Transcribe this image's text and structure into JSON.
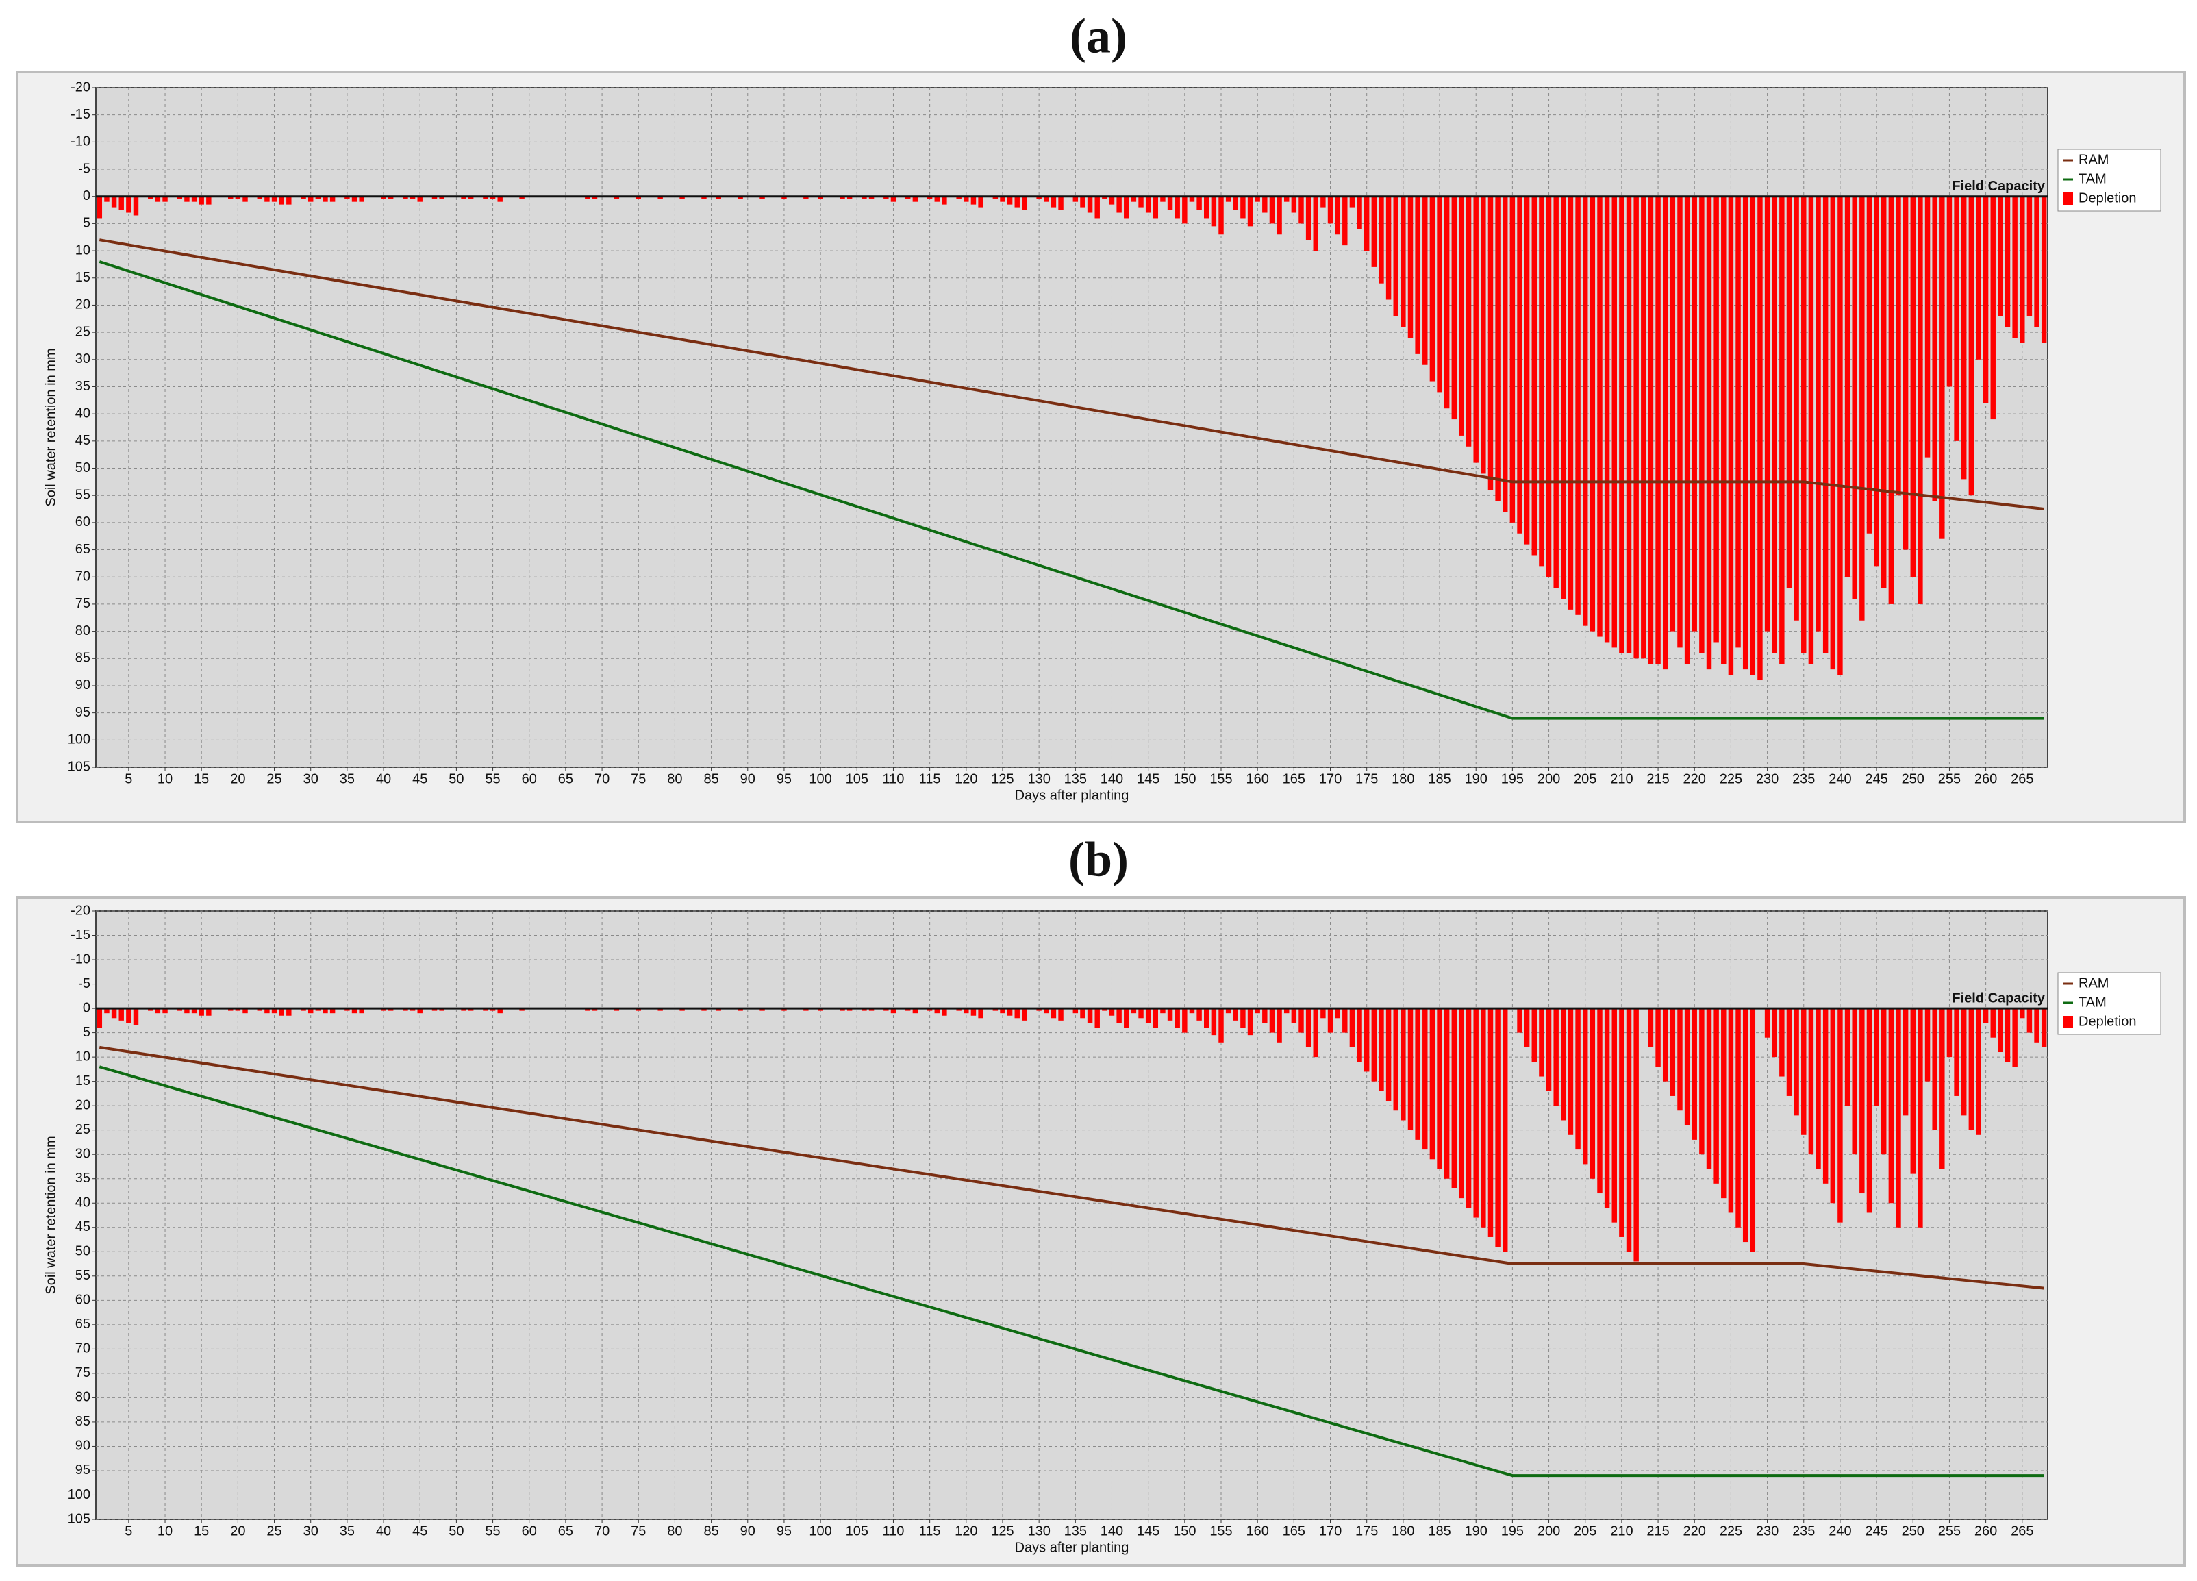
{
  "chart_data": [
    {
      "type": "bar",
      "title": "(a)",
      "x_label": "Days after planting",
      "y_label": "Soil water retention in mm",
      "annotation": "Field Capacity",
      "x": [
        1,
        2,
        3,
        4,
        5,
        6,
        7,
        8,
        9,
        10,
        11,
        12,
        13,
        14,
        15,
        16,
        17,
        18,
        19,
        20,
        21,
        22,
        23,
        24,
        25,
        26,
        27,
        28,
        29,
        30,
        31,
        32,
        33,
        34,
        35,
        36,
        37,
        38,
        39,
        40,
        41,
        42,
        43,
        44,
        45,
        46,
        47,
        48,
        49,
        50,
        51,
        52,
        53,
        54,
        55,
        56,
        57,
        58,
        59,
        60,
        61,
        62,
        63,
        64,
        65,
        66,
        67,
        68,
        69,
        70,
        71,
        72,
        73,
        74,
        75,
        76,
        77,
        78,
        79,
        80,
        81,
        82,
        83,
        84,
        85,
        86,
        87,
        88,
        89,
        90,
        91,
        92,
        93,
        94,
        95,
        96,
        97,
        98,
        99,
        100,
        101,
        102,
        103,
        104,
        105,
        106,
        107,
        108,
        109,
        110,
        111,
        112,
        113,
        114,
        115,
        116,
        117,
        118,
        119,
        120,
        121,
        122,
        123,
        124,
        125,
        126,
        127,
        128,
        129,
        130,
        131,
        132,
        133,
        134,
        135,
        136,
        137,
        138,
        139,
        140,
        141,
        142,
        143,
        144,
        145,
        146,
        147,
        148,
        149,
        150,
        151,
        152,
        153,
        154,
        155,
        156,
        157,
        158,
        159,
        160,
        161,
        162,
        163,
        164,
        165,
        166,
        167,
        168,
        169,
        170,
        171,
        172,
        173,
        174,
        175,
        176,
        177,
        178,
        179,
        180,
        181,
        182,
        183,
        184,
        185,
        186,
        187,
        188,
        189,
        190,
        191,
        192,
        193,
        194,
        195,
        196,
        197,
        198,
        199,
        200,
        201,
        202,
        203,
        204,
        205,
        206,
        207,
        208,
        209,
        210,
        211,
        212,
        213,
        214,
        215,
        216,
        217,
        218,
        219,
        220,
        221,
        222,
        223,
        224,
        225,
        226,
        227,
        228,
        229,
        230,
        231,
        232,
        233,
        234,
        235,
        236,
        237,
        238,
        239,
        240,
        241,
        242,
        243,
        244,
        245,
        246,
        247,
        248,
        249,
        250,
        251,
        252,
        253,
        254,
        255,
        256,
        257,
        258,
        259,
        260,
        261,
        262,
        263,
        264,
        265,
        266,
        267,
        268
      ],
      "series": [
        {
          "name": "RAM",
          "type": "line",
          "color": "#7a2e12",
          "x": [
            1,
            195,
            235,
            268
          ],
          "values": [
            8,
            52.5,
            52.5,
            57.5
          ]
        },
        {
          "name": "TAM",
          "type": "line",
          "color": "#0e6b12",
          "x": [
            1,
            195,
            268
          ],
          "values": [
            12,
            96,
            96
          ]
        },
        {
          "name": "Depletion",
          "type": "bar",
          "color": "#ff0000",
          "values": [
            4,
            1,
            2,
            2.5,
            3,
            3.5,
            0,
            0.5,
            1,
            1,
            0,
            0.5,
            1,
            1,
            1.5,
            1.5,
            0,
            0,
            0.5,
            0.5,
            1,
            0,
            0.5,
            1,
            1,
            1.5,
            1.5,
            0,
            0.5,
            1,
            0.5,
            1,
            1,
            0,
            0.5,
            1,
            1,
            0,
            0,
            0.5,
            0.5,
            0,
            0.5,
            0.5,
            1,
            0,
            0.5,
            0.5,
            0,
            0,
            0.5,
            0.5,
            0,
            0.5,
            0.5,
            1,
            0,
            0,
            0.5,
            0,
            0,
            0,
            0,
            0,
            0,
            0,
            0,
            0.5,
            0.5,
            0,
            0,
            0.5,
            0,
            0,
            0.5,
            0,
            0,
            0.5,
            0,
            0,
            0.5,
            0,
            0,
            0.5,
            0,
            0.5,
            0,
            0,
            0.5,
            0,
            0,
            0.5,
            0,
            0,
            0.5,
            0,
            0,
            0.5,
            0,
            0.5,
            0,
            0,
            0.5,
            0.5,
            0,
            0.5,
            0.5,
            0,
            0.5,
            1,
            0,
            0.5,
            1,
            0,
            0.5,
            1,
            1.5,
            0,
            0.5,
            1,
            1.5,
            2,
            0,
            0.5,
            1,
            1.5,
            2,
            2.5,
            0,
            0.5,
            1,
            2,
            2.5,
            0,
            1,
            2,
            3,
            4,
            0.5,
            1.5,
            3,
            4,
            1,
            2,
            3,
            4,
            1,
            2.5,
            4,
            5,
            1,
            2.5,
            4,
            5.5,
            7,
            1,
            2.5,
            4,
            5.5,
            1,
            3,
            5,
            7,
            1,
            3,
            5,
            8,
            10,
            2,
            5,
            7,
            9,
            2,
            6,
            10,
            13,
            16,
            19,
            22,
            24,
            26,
            29,
            31,
            34,
            36,
            39,
            41,
            44,
            46,
            49,
            51,
            54,
            56,
            58,
            60,
            62,
            64,
            66,
            68,
            70,
            72,
            74,
            76,
            77,
            79,
            80,
            81,
            82,
            83,
            84,
            84,
            85,
            85,
            86,
            86,
            87,
            80,
            83,
            86,
            80,
            84,
            87,
            82,
            86,
            88,
            83,
            87,
            88,
            89,
            80,
            84,
            86,
            72,
            78,
            84,
            86,
            80,
            84,
            87,
            88,
            70,
            74,
            78,
            62,
            68,
            72,
            75,
            55,
            65,
            70,
            75,
            48,
            56,
            63,
            35,
            45,
            52,
            55,
            30,
            38,
            41,
            22,
            24,
            26,
            27,
            22,
            24,
            27
          ]
        }
      ],
      "xlim": [
        0.5,
        268.5
      ],
      "ylim": [
        -20,
        105
      ],
      "y_reversed": true,
      "xticks": [
        5,
        10,
        15,
        20,
        25,
        30,
        35,
        40,
        45,
        50,
        55,
        60,
        65,
        70,
        75,
        80,
        85,
        90,
        95,
        100,
        105,
        110,
        115,
        120,
        125,
        130,
        135,
        140,
        145,
        150,
        155,
        160,
        165,
        170,
        175,
        180,
        185,
        190,
        195,
        200,
        205,
        210,
        215,
        220,
        225,
        230,
        235,
        240,
        245,
        250,
        255,
        260,
        265
      ],
      "yticks": [
        -20,
        -15,
        -10,
        -5,
        0,
        5,
        10,
        15,
        20,
        25,
        30,
        35,
        40,
        45,
        50,
        55,
        60,
        65,
        70,
        75,
        80,
        85,
        90,
        95,
        100,
        105
      ],
      "grid": true,
      "legend": "right"
    },
    {
      "type": "bar",
      "title": "(b)",
      "x_label": "Days after planting",
      "y_label": "Soil water retention in mm",
      "annotation": "Field Capacity",
      "x": [
        1,
        2,
        3,
        4,
        5,
        6,
        7,
        8,
        9,
        10,
        11,
        12,
        13,
        14,
        15,
        16,
        17,
        18,
        19,
        20,
        21,
        22,
        23,
        24,
        25,
        26,
        27,
        28,
        29,
        30,
        31,
        32,
        33,
        34,
        35,
        36,
        37,
        38,
        39,
        40,
        41,
        42,
        43,
        44,
        45,
        46,
        47,
        48,
        49,
        50,
        51,
        52,
        53,
        54,
        55,
        56,
        57,
        58,
        59,
        60,
        61,
        62,
        63,
        64,
        65,
        66,
        67,
        68,
        69,
        70,
        71,
        72,
        73,
        74,
        75,
        76,
        77,
        78,
        79,
        80,
        81,
        82,
        83,
        84,
        85,
        86,
        87,
        88,
        89,
        90,
        91,
        92,
        93,
        94,
        95,
        96,
        97,
        98,
        99,
        100,
        101,
        102,
        103,
        104,
        105,
        106,
        107,
        108,
        109,
        110,
        111,
        112,
        113,
        114,
        115,
        116,
        117,
        118,
        119,
        120,
        121,
        122,
        123,
        124,
        125,
        126,
        127,
        128,
        129,
        130,
        131,
        132,
        133,
        134,
        135,
        136,
        137,
        138,
        139,
        140,
        141,
        142,
        143,
        144,
        145,
        146,
        147,
        148,
        149,
        150,
        151,
        152,
        153,
        154,
        155,
        156,
        157,
        158,
        159,
        160,
        161,
        162,
        163,
        164,
        165,
        166,
        167,
        168,
        169,
        170,
        171,
        172,
        173,
        174,
        175,
        176,
        177,
        178,
        179,
        180,
        181,
        182,
        183,
        184,
        185,
        186,
        187,
        188,
        189,
        190,
        191,
        192,
        193,
        194,
        195,
        196,
        197,
        198,
        199,
        200,
        201,
        202,
        203,
        204,
        205,
        206,
        207,
        208,
        209,
        210,
        211,
        212,
        213,
        214,
        215,
        216,
        217,
        218,
        219,
        220,
        221,
        222,
        223,
        224,
        225,
        226,
        227,
        228,
        229,
        230,
        231,
        232,
        233,
        234,
        235,
        236,
        237,
        238,
        239,
        240,
        241,
        242,
        243,
        244,
        245,
        246,
        247,
        248,
        249,
        250,
        251,
        252,
        253,
        254,
        255,
        256,
        257,
        258,
        259,
        260,
        261,
        262,
        263,
        264,
        265,
        266,
        267,
        268
      ],
      "series": [
        {
          "name": "RAM",
          "type": "line",
          "color": "#7a2e12",
          "x": [
            1,
            195,
            235,
            268
          ],
          "values": [
            8,
            52.5,
            52.5,
            57.5
          ]
        },
        {
          "name": "TAM",
          "type": "line",
          "color": "#0e6b12",
          "x": [
            1,
            195,
            268
          ],
          "values": [
            12,
            96,
            96
          ]
        },
        {
          "name": "Depletion",
          "type": "bar",
          "color": "#ff0000",
          "values": [
            4,
            1,
            2,
            2.5,
            3,
            3.5,
            0,
            0.5,
            1,
            1,
            0,
            0.5,
            1,
            1,
            1.5,
            1.5,
            0,
            0,
            0.5,
            0.5,
            1,
            0,
            0.5,
            1,
            1,
            1.5,
            1.5,
            0,
            0.5,
            1,
            0.5,
            1,
            1,
            0,
            0.5,
            1,
            1,
            0,
            0,
            0.5,
            0.5,
            0,
            0.5,
            0.5,
            1,
            0,
            0.5,
            0.5,
            0,
            0,
            0.5,
            0.5,
            0,
            0.5,
            0.5,
            1,
            0,
            0,
            0.5,
            0,
            0,
            0,
            0,
            0,
            0,
            0,
            0,
            0.5,
            0.5,
            0,
            0,
            0.5,
            0,
            0,
            0.5,
            0,
            0,
            0.5,
            0,
            0,
            0.5,
            0,
            0,
            0.5,
            0,
            0.5,
            0,
            0,
            0.5,
            0,
            0,
            0.5,
            0,
            0,
            0.5,
            0,
            0,
            0.5,
            0,
            0.5,
            0,
            0,
            0.5,
            0.5,
            0,
            0.5,
            0.5,
            0,
            0.5,
            1,
            0,
            0.5,
            1,
            0,
            0.5,
            1,
            1.5,
            0,
            0.5,
            1,
            1.5,
            2,
            0,
            0.5,
            1,
            1.5,
            2,
            2.5,
            0,
            0.5,
            1,
            2,
            2.5,
            0,
            1,
            2,
            3,
            4,
            0.5,
            1.5,
            3,
            4,
            1,
            2,
            3,
            4,
            1,
            2.5,
            4,
            5,
            1,
            2.5,
            4,
            5.5,
            7,
            1,
            2.5,
            4,
            5.5,
            1,
            3,
            5,
            7,
            1,
            3,
            5,
            8,
            10,
            2,
            5,
            2,
            5,
            8,
            11,
            13,
            15,
            17,
            19,
            21,
            23,
            25,
            27,
            29,
            31,
            33,
            35,
            37,
            39,
            41,
            43,
            45,
            47,
            49,
            50,
            0,
            5,
            8,
            11,
            14,
            17,
            20,
            23,
            26,
            29,
            32,
            35,
            38,
            41,
            44,
            47,
            50,
            52,
            0,
            8,
            12,
            15,
            18,
            21,
            24,
            27,
            30,
            33,
            36,
            39,
            42,
            45,
            48,
            50,
            0,
            6,
            10,
            14,
            18,
            22,
            26,
            30,
            33,
            36,
            40,
            44,
            20,
            30,
            38,
            42,
            20,
            30,
            40,
            45,
            22,
            34,
            45,
            15,
            25,
            33,
            10,
            18,
            22,
            25,
            26,
            3,
            6,
            9,
            11,
            12,
            2,
            5,
            7,
            8
          ]
        }
      ],
      "xlim": [
        0.5,
        268.5
      ],
      "ylim": [
        -20,
        105
      ],
      "y_reversed": true,
      "xticks": [
        5,
        10,
        15,
        20,
        25,
        30,
        35,
        40,
        45,
        50,
        55,
        60,
        65,
        70,
        75,
        80,
        85,
        90,
        95,
        100,
        105,
        110,
        115,
        120,
        125,
        130,
        135,
        140,
        145,
        150,
        155,
        160,
        165,
        170,
        175,
        180,
        185,
        190,
        195,
        200,
        205,
        210,
        215,
        220,
        225,
        230,
        235,
        240,
        245,
        250,
        255,
        260,
        265
      ],
      "yticks": [
        -20,
        -15,
        -10,
        -5,
        0,
        5,
        10,
        15,
        20,
        25,
        30,
        35,
        40,
        45,
        50,
        55,
        60,
        65,
        70,
        75,
        80,
        85,
        90,
        95,
        100,
        105
      ],
      "grid": true,
      "legend": "right"
    }
  ]
}
